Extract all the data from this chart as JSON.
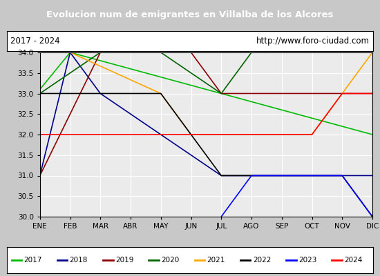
{
  "title": "Evolucion num de emigrantes en Villalba de los Alcores",
  "subtitle_left": "2017 - 2024",
  "subtitle_right": "http://www.foro-ciudad.com",
  "ylim": [
    30.0,
    34.0
  ],
  "yticks": [
    30.0,
    30.5,
    31.0,
    31.5,
    32.0,
    32.5,
    33.0,
    33.5,
    34.0
  ],
  "months": [
    "ENE",
    "FEB",
    "MAR",
    "ABR",
    "MAY",
    "JUN",
    "JUL",
    "AGO",
    "SEP",
    "OCT",
    "NOV",
    "DIC"
  ],
  "series": [
    {
      "year": "2017",
      "color": "#00bb00",
      "data": [
        [
          1,
          33.1
        ],
        [
          2,
          34.0
        ],
        [
          12,
          32.0
        ]
      ]
    },
    {
      "year": "2018",
      "color": "#00008B",
      "data": [
        [
          1,
          31.0
        ],
        [
          2,
          34.0
        ],
        [
          3,
          33.0
        ],
        [
          7,
          31.0
        ],
        [
          8,
          31.0
        ],
        [
          9,
          31.0
        ],
        [
          10,
          31.0
        ],
        [
          11,
          31.0
        ],
        [
          12,
          31.0
        ]
      ]
    },
    {
      "year": "2019",
      "color": "#8B0000",
      "data": [
        [
          1,
          31.0
        ],
        [
          3,
          34.0
        ],
        [
          6,
          34.0
        ],
        [
          7,
          33.0
        ],
        [
          12,
          33.0
        ]
      ]
    },
    {
      "year": "2020",
      "color": "#006400",
      "data": [
        [
          1,
          33.0
        ],
        [
          3,
          34.0
        ],
        [
          5,
          34.0
        ],
        [
          7,
          33.0
        ],
        [
          8,
          34.0
        ],
        [
          12,
          34.0
        ]
      ]
    },
    {
      "year": "2021",
      "color": "#FFA500",
      "data": [
        [
          2,
          34.0
        ],
        [
          5,
          33.0
        ],
        [
          6,
          32.0
        ],
        [
          7,
          32.0
        ],
        [
          8,
          32.0
        ],
        [
          9,
          32.0
        ],
        [
          10,
          32.0
        ],
        [
          11,
          33.0
        ],
        [
          12,
          34.0
        ]
      ]
    },
    {
      "year": "2022",
      "color": "#000000",
      "data": [
        [
          1,
          33.0
        ],
        [
          5,
          33.0
        ],
        [
          6,
          32.0
        ],
        [
          7,
          31.0
        ],
        [
          11,
          31.0
        ],
        [
          12,
          30.0
        ]
      ]
    },
    {
      "year": "2023",
      "color": "#0000FF",
      "data": [
        [
          7,
          30.0
        ],
        [
          8,
          31.0
        ],
        [
          11,
          31.0
        ],
        [
          12,
          30.0
        ]
      ]
    },
    {
      "year": "2024",
      "color": "#FF0000",
      "data": [
        [
          1,
          32.0
        ],
        [
          10,
          32.0
        ],
        [
          11,
          33.0
        ],
        [
          12,
          33.0
        ]
      ]
    }
  ],
  "title_bg_color": "#4472C4",
  "title_fg_color": "#FFFFFF",
  "plot_bg_color": "#EBEBEB",
  "grid_color": "#FFFFFF",
  "border_color": "#000000",
  "fig_bg_color": "#C8C8C8",
  "infobar_bg_color": "#FFFFFF"
}
